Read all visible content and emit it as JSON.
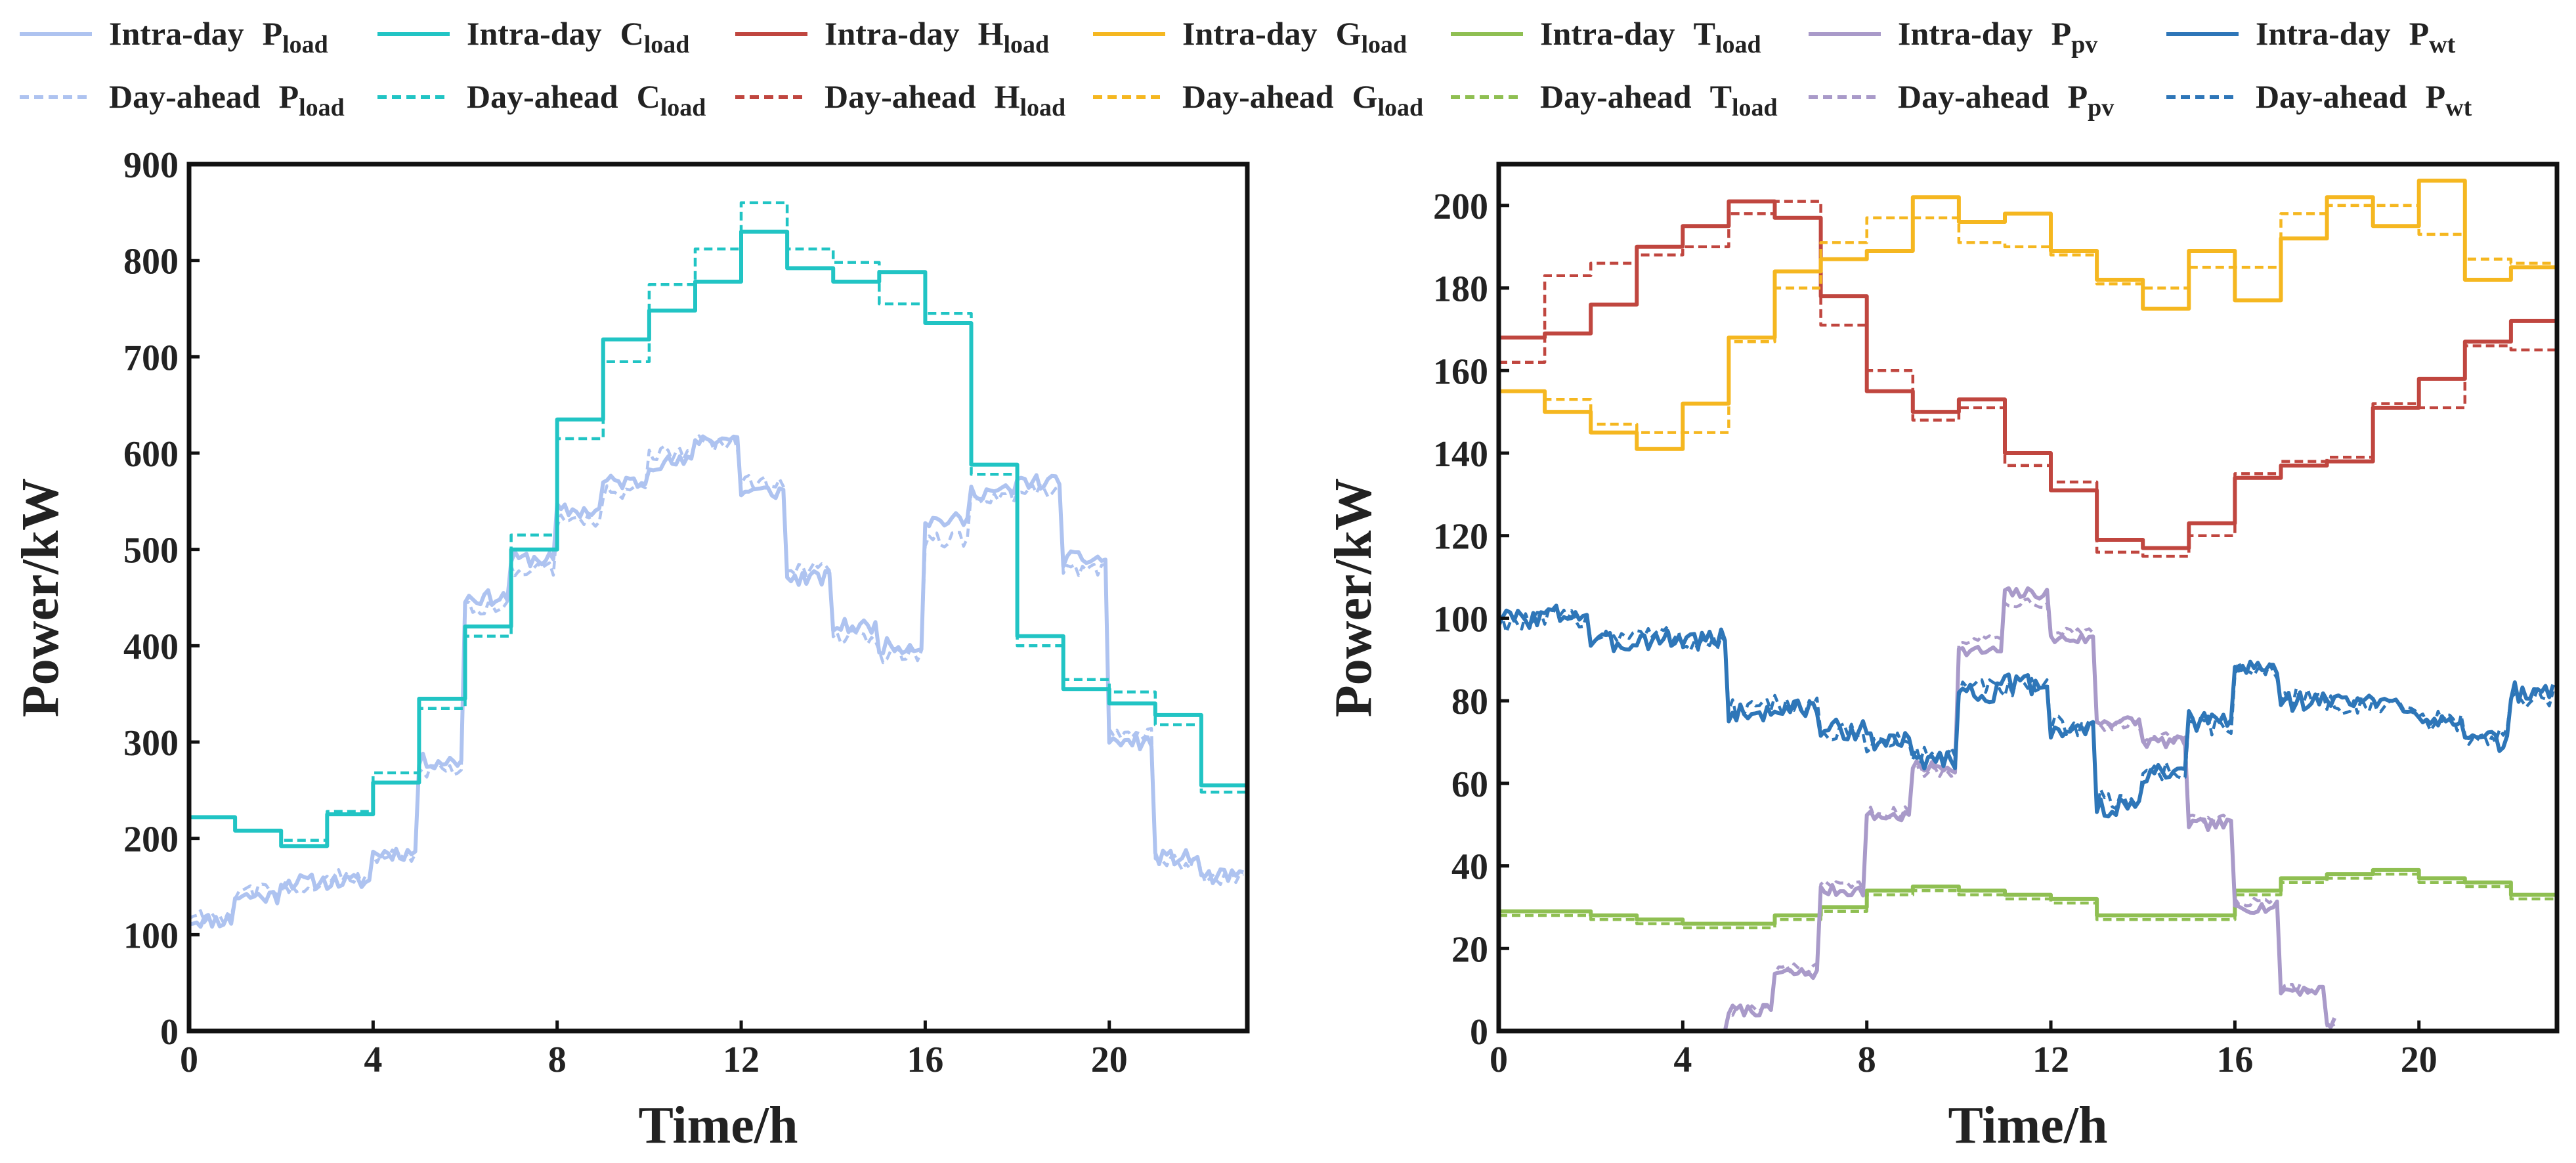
{
  "legend": {
    "rows": [
      [
        {
          "series": "p_load",
          "style": "solid",
          "prefix": "Intra-day",
          "base": "P",
          "sub": "load"
        },
        {
          "series": "c_load",
          "style": "solid",
          "prefix": "Intra-day",
          "base": "C",
          "sub": "load"
        },
        {
          "series": "h_load",
          "style": "solid",
          "prefix": "Intra-day",
          "base": "H",
          "sub": "load"
        },
        {
          "series": "g_load",
          "style": "solid",
          "prefix": "Intra-day",
          "base": "G",
          "sub": "load"
        },
        {
          "series": "t_load",
          "style": "solid",
          "prefix": "Intra-day",
          "base": "T",
          "sub": "load"
        },
        {
          "series": "p_pv",
          "style": "solid",
          "prefix": "Intra-day",
          "base": "P",
          "sub": "pv"
        },
        {
          "series": "p_wt",
          "style": "solid",
          "prefix": "Intra-day",
          "base": "P",
          "sub": "wt"
        }
      ],
      [
        {
          "series": "p_load",
          "style": "dashed",
          "prefix": "Day-ahead",
          "base": "P",
          "sub": "load"
        },
        {
          "series": "c_load",
          "style": "dashed",
          "prefix": "Day-ahead",
          "base": "C",
          "sub": "load"
        },
        {
          "series": "h_load",
          "style": "dashed",
          "prefix": "Day-ahead",
          "base": "H",
          "sub": "load"
        },
        {
          "series": "g_load",
          "style": "dashed",
          "prefix": "Day-ahead",
          "base": "G",
          "sub": "load"
        },
        {
          "series": "t_load",
          "style": "dashed",
          "prefix": "Day-ahead",
          "base": "T",
          "sub": "load"
        },
        {
          "series": "p_pv",
          "style": "dashed",
          "prefix": "Day-ahead",
          "base": "P",
          "sub": "pv"
        },
        {
          "series": "p_wt",
          "style": "dashed",
          "prefix": "Day-ahead",
          "base": "P",
          "sub": "wt"
        }
      ]
    ]
  },
  "colors": {
    "p_load": "#aec3f0",
    "c_load": "#21c4c4",
    "h_load": "#c0463f",
    "g_load": "#f5b720",
    "t_load": "#8fbf52",
    "p_pv": "#a99ac9",
    "p_wt": "#2e76b8"
  },
  "chart_data": [
    {
      "type": "line",
      "xlabel": "Time/h",
      "ylabel": "Power/kW",
      "xlim": [
        0,
        23
      ],
      "ylim": [
        0,
        900
      ],
      "xticks": [
        0,
        4,
        8,
        12,
        16,
        20
      ],
      "yticks": [
        0,
        100,
        200,
        300,
        400,
        500,
        600,
        700,
        800,
        900
      ],
      "series": [
        {
          "key": "p_load",
          "type": "step_noisy",
          "noise": 8,
          "seed": 11,
          "intra": [
            115,
            140,
            155,
            155,
            185,
            280,
            450,
            490,
            540,
            570,
            590,
            615,
            560,
            470,
            420,
            400,
            530,
            560,
            570,
            490,
            300,
            180,
            160
          ],
          "day_ahead": [
            120,
            145,
            150,
            160,
            180,
            270,
            440,
            480,
            530,
            560,
            600,
            610,
            570,
            480,
            410,
            390,
            510,
            555,
            560,
            480,
            310,
            175,
            160
          ]
        },
        {
          "key": "c_load",
          "type": "step",
          "intra": [
            222,
            208,
            192,
            225,
            258,
            345,
            420,
            500,
            635,
            718,
            748,
            778,
            830,
            792,
            778,
            788,
            735,
            588,
            410,
            355,
            340,
            328,
            255,
            215
          ],
          "day_ahead": [
            222,
            208,
            198,
            228,
            268,
            335,
            410,
            515,
            615,
            695,
            775,
            812,
            860,
            812,
            798,
            755,
            745,
            578,
            400,
            365,
            352,
            318,
            248,
            220
          ]
        }
      ]
    },
    {
      "type": "line",
      "xlabel": "Time/h",
      "ylabel": "Power/kW",
      "xlim": [
        0,
        23
      ],
      "ylim": [
        0,
        210
      ],
      "xticks": [
        0,
        4,
        8,
        12,
        16,
        20
      ],
      "yticks": [
        0,
        20,
        40,
        60,
        80,
        100,
        120,
        140,
        160,
        180,
        200
      ],
      "series": [
        {
          "key": "h_load",
          "type": "step",
          "intra": [
            168,
            169,
            176,
            190,
            195,
            201,
            197,
            178,
            155,
            150,
            153,
            140,
            131,
            119,
            117,
            123,
            134,
            137,
            138,
            151,
            158,
            167,
            172,
            168
          ],
          "day_ahead": [
            162,
            183,
            186,
            188,
            190,
            198,
            201,
            171,
            160,
            148,
            151,
            137,
            133,
            116,
            115,
            120,
            135,
            138,
            139,
            152,
            151,
            166,
            165,
            169
          ]
        },
        {
          "key": "g_load",
          "type": "step",
          "intra": [
            155,
            150,
            145,
            141,
            152,
            168,
            184,
            187,
            189,
            202,
            196,
            198,
            189,
            182,
            175,
            189,
            177,
            192,
            202,
            195,
            206,
            182,
            185,
            169
          ],
          "day_ahead": [
            155,
            153,
            147,
            145,
            145,
            167,
            180,
            191,
            197,
            197,
            191,
            190,
            188,
            181,
            180,
            185,
            185,
            198,
            200,
            200,
            193,
            187,
            186,
            172
          ]
        },
        {
          "key": "t_load",
          "type": "step",
          "intra": [
            29,
            29,
            28,
            27,
            26,
            26,
            28,
            30,
            34,
            35,
            34,
            33,
            32,
            28,
            28,
            28,
            34,
            37,
            38,
            39,
            37,
            36,
            33,
            31
          ],
          "day_ahead": [
            28,
            28,
            27,
            26,
            25,
            25,
            27,
            29,
            33,
            34,
            33,
            32,
            31,
            27,
            27,
            27,
            33,
            36,
            37,
            38,
            36,
            35,
            32,
            30
          ]
        },
        {
          "key": "p_pv",
          "type": "step_noisy",
          "noise": 1.4,
          "seed": 7,
          "start_hour": 4.8,
          "end_hour": 18.2,
          "intra": [
            0,
            0,
            0,
            0,
            0,
            5,
            14,
            34,
            52,
            64,
            92,
            106,
            95,
            75,
            70,
            50,
            30,
            10,
            2,
            0,
            0,
            0,
            0
          ],
          "day_ahead": [
            0,
            0,
            0,
            0,
            0,
            5,
            15,
            35,
            53,
            63,
            95,
            104,
            97,
            74,
            71,
            51,
            31,
            10,
            2,
            0,
            0,
            0,
            0
          ]
        },
        {
          "key": "p_wt",
          "type": "step_noisy",
          "noise": 2.5,
          "seed": 3,
          "intra": [
            100,
            101,
            94,
            95,
            95,
            77,
            78,
            73,
            70,
            66,
            82,
            84,
            73,
            54,
            62,
            75,
            88,
            80,
            80,
            79,
            76,
            70,
            82
          ],
          "day_ahead": [
            99,
            100,
            96,
            96,
            94,
            78,
            79,
            72,
            70,
            67,
            83,
            83,
            74,
            56,
            63,
            74,
            87,
            81,
            79,
            78,
            75,
            71,
            81
          ]
        }
      ]
    }
  ]
}
